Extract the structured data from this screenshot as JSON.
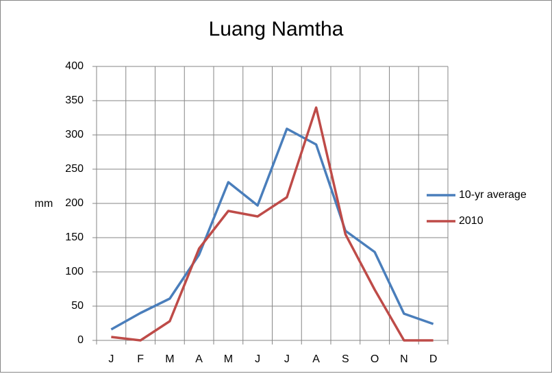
{
  "chart_data": {
    "type": "line",
    "title": "Luang Namtha",
    "y_label": "mm",
    "categories": [
      "J",
      "F",
      "M",
      "A",
      "M",
      "J",
      "J",
      "A",
      "S",
      "O",
      "N",
      "D"
    ],
    "series": [
      {
        "name": "10-yr average",
        "color": "#4a7ebb",
        "values": [
          16,
          40,
          61,
          125,
          231,
          197,
          309,
          286,
          160,
          129,
          39,
          24
        ]
      },
      {
        "name": "2010",
        "color": "#be4b48",
        "values": [
          5,
          0,
          28,
          134,
          189,
          181,
          209,
          340,
          155,
          74,
          0,
          0
        ]
      }
    ],
    "ylim": [
      0,
      400
    ],
    "yticks": [
      0,
      50,
      100,
      150,
      200,
      250,
      300,
      350,
      400
    ],
    "grid": true,
    "legend": "right"
  }
}
